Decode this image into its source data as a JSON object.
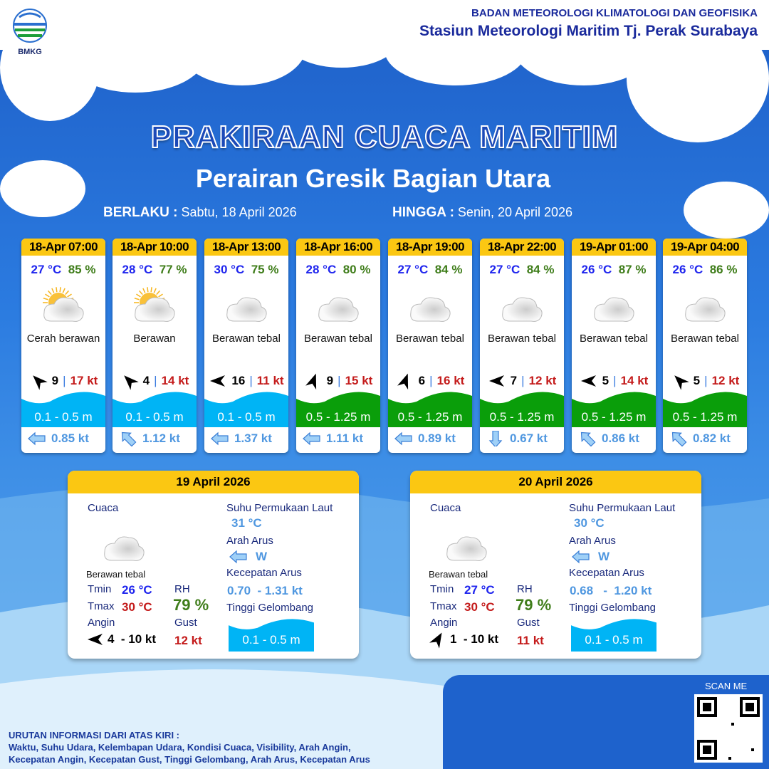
{
  "header": {
    "logo_text": "BMKG",
    "org_line1": "BADAN METEOROLOGI KLIMATOLOGI DAN GEOFISIKA",
    "org_line2": "Stasiun Meteorologi Maritim Tj. Perak Surabaya"
  },
  "title": "PRAKIRAAN CUACA MARITIM",
  "subtitle": "Perairan Gresik Bagian Utara",
  "validity": {
    "from_label": "BERLAKU :",
    "from_value": "Sabtu, 18 April 2026",
    "to_label": "HINGGA :",
    "to_value": "Senin, 20 April 2026"
  },
  "colors": {
    "header_yellow": "#fbc712",
    "wave_low": "#00b4f5",
    "wave_mid": "#0a9e0a",
    "temp": "#1f25ee",
    "rh": "#3f7d1a",
    "gust": "#c41b1b"
  },
  "forecasts": [
    {
      "time": "18-Apr 07:00",
      "temp": "27 °C",
      "rh": "85 %",
      "icon": "partly-cloudy-icon",
      "weather": "Cerah berawan",
      "wind_dir_deg": 315,
      "wind": "9",
      "gust": "17 kt",
      "wave": "0.1 - 0.5 m",
      "wave_level": "low",
      "current_dir_deg": 270,
      "current": "0.85 kt"
    },
    {
      "time": "18-Apr 10:00",
      "temp": "28 °C",
      "rh": "77 %",
      "icon": "cloudy-sun-icon",
      "weather": "Berawan",
      "wind_dir_deg": 315,
      "wind": "4",
      "gust": "14 kt",
      "wave": "0.1 - 0.5 m",
      "wave_level": "low",
      "current_dir_deg": 315,
      "current": "1.12 kt"
    },
    {
      "time": "18-Apr 13:00",
      "temp": "30 °C",
      "rh": "75 %",
      "icon": "cloud-icon",
      "weather": "Berawan tebal",
      "wind_dir_deg": 270,
      "wind": "16",
      "gust": "11 kt",
      "wave": "0.1 - 0.5 m",
      "wave_level": "low",
      "current_dir_deg": 270,
      "current": "1.37 kt"
    },
    {
      "time": "18-Apr 16:00",
      "temp": "28 °C",
      "rh": "80 %",
      "icon": "cloud-icon",
      "weather": "Berawan tebal",
      "wind_dir_deg": 20,
      "wind": "9",
      "gust": "15 kt",
      "wave": "0.5 - 1.25 m",
      "wave_level": "mid",
      "current_dir_deg": 270,
      "current": "1.11 kt"
    },
    {
      "time": "18-Apr 19:00",
      "temp": "27 °C",
      "rh": "84 %",
      "icon": "cloud-icon",
      "weather": "Berawan tebal",
      "wind_dir_deg": 20,
      "wind": "6",
      "gust": "16 kt",
      "wave": "0.5 - 1.25 m",
      "wave_level": "mid",
      "current_dir_deg": 270,
      "current": "0.89 kt"
    },
    {
      "time": "18-Apr 22:00",
      "temp": "27 °C",
      "rh": "84 %",
      "icon": "cloud-icon",
      "weather": "Berawan tebal",
      "wind_dir_deg": 270,
      "wind": "7",
      "gust": "12 kt",
      "wave": "0.5 - 1.25 m",
      "wave_level": "mid",
      "current_dir_deg": 180,
      "current": "0.67 kt"
    },
    {
      "time": "19-Apr 01:00",
      "temp": "26 °C",
      "rh": "87 %",
      "icon": "cloud-icon",
      "weather": "Berawan tebal",
      "wind_dir_deg": 270,
      "wind": "5",
      "gust": "14 kt",
      "wave": "0.5 - 1.25 m",
      "wave_level": "mid",
      "current_dir_deg": 315,
      "current": "0.86 kt"
    },
    {
      "time": "19-Apr 04:00",
      "temp": "26 °C",
      "rh": "86 %",
      "icon": "cloud-icon",
      "weather": "Berawan tebal",
      "wind_dir_deg": 315,
      "wind": "5",
      "gust": "12 kt",
      "wave": "0.5 - 1.25 m",
      "wave_level": "mid",
      "current_dir_deg": 315,
      "current": "0.82 kt"
    }
  ],
  "daily_labels": {
    "weather": "Cuaca",
    "tmin": "Tmin",
    "tmax": "Tmax",
    "wind": "Angin",
    "rh": "RH",
    "gust": "Gust",
    "sst": "Suhu Permukaan Laut",
    "current_dir": "Arah Arus",
    "current_speed": "Kecepatan Arus",
    "wave": "Tinggi Gelombang"
  },
  "daily": [
    {
      "date": "19 April 2026",
      "weather": "Berawan tebal",
      "tmin": "26 °C",
      "tmax": "30 °C",
      "wind_dir_deg": 270,
      "wind": "4  - 10 kt",
      "rh": "79 %",
      "gust": "12 kt",
      "sst": "31 °C",
      "current_dir": "W",
      "current_speed": "0.70  - 1.31 kt",
      "wave": "0.1 - 0.5 m"
    },
    {
      "date": "20 April 2026",
      "weather": "Berawan tebal",
      "tmin": "27 °C",
      "tmax": "30 °C",
      "wind_dir_deg": 30,
      "wind": "1  - 10 kt",
      "rh": "79 %",
      "gust": "11 kt",
      "sst": "30 °C",
      "current_dir": "W",
      "current_speed": "0.68   -  1.20 kt",
      "wave": "0.1 - 0.5 m"
    }
  ],
  "footer": {
    "line1": "URUTAN INFORMASI DARI ATAS KIRI :",
    "line2": "Waktu, Suhu Udara, Kelembapan Udara, Kondisi Cuaca, Visibility, Arah Angin,",
    "line3": "Kecepatan Angin, Kecepatan Gust, Tinggi Gelombang, Arah Arus, Kecepatan Arus",
    "scan": "SCAN ME"
  }
}
